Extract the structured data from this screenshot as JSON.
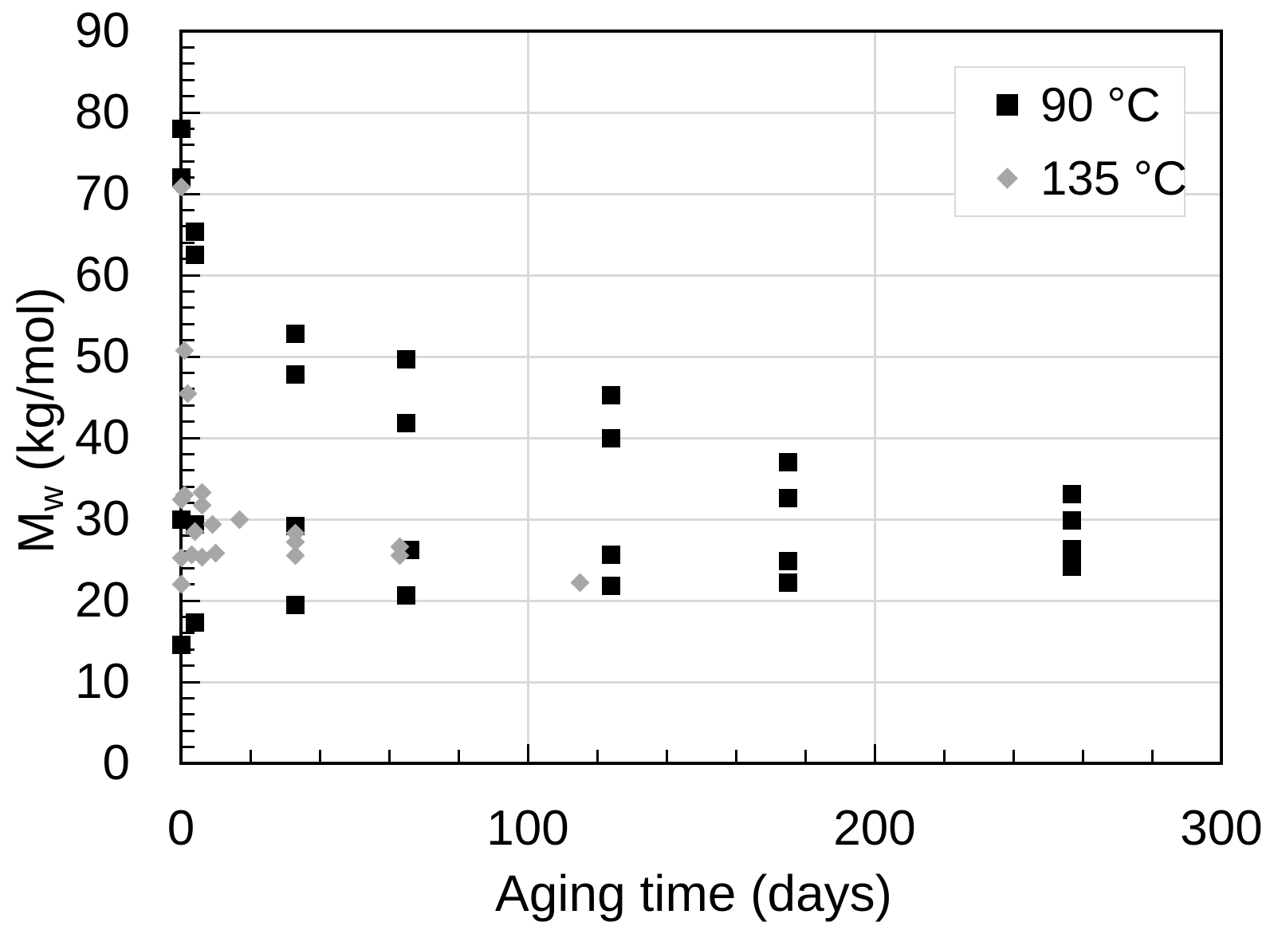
{
  "chart_data": {
    "type": "scatter",
    "title": "",
    "xlabel": "Aging time (days)",
    "ylabel_main": "M",
    "ylabel_sub": "w",
    "ylabel_unit": " (kg/mol)",
    "xlim": [
      0,
      300
    ],
    "ylim": [
      0,
      90
    ],
    "x_tick_labels": [
      "0",
      "100",
      "200",
      "300"
    ],
    "x_major_step": 100,
    "x_minor_step": 20,
    "y_tick_labels": [
      "0",
      "10",
      "20",
      "30",
      "40",
      "50",
      "60",
      "70",
      "80",
      "90"
    ],
    "y_major_step": 10,
    "y_minor_step": 2,
    "grid": true,
    "legend_position": "top-right",
    "colors": {
      "axis": "#000000",
      "gridline": "#d9d9d9",
      "legend_border": "#d9d9d9",
      "series_90": "#000000",
      "series_135": "#a6a6a6"
    },
    "series": [
      {
        "name": "90 °C",
        "marker": "square",
        "color": "#000000",
        "points": [
          [
            0,
            78.0
          ],
          [
            0,
            72.0
          ],
          [
            4,
            65.3
          ],
          [
            4,
            62.5
          ],
          [
            33,
            52.8
          ],
          [
            33,
            47.8
          ],
          [
            65,
            49.7
          ],
          [
            65,
            41.8
          ],
          [
            124,
            45.2
          ],
          [
            124,
            40.0
          ],
          [
            175,
            37.0
          ],
          [
            175,
            32.6
          ],
          [
            257,
            33.1
          ],
          [
            257,
            29.9
          ],
          [
            0,
            30.0
          ],
          [
            4,
            29.4
          ],
          [
            33,
            29.2
          ],
          [
            66,
            26.2
          ],
          [
            124,
            25.6
          ],
          [
            124,
            21.8
          ],
          [
            175,
            24.9
          ],
          [
            175,
            22.2
          ],
          [
            257,
            26.3
          ],
          [
            257,
            24.2
          ],
          [
            33,
            19.5
          ],
          [
            65,
            20.6
          ],
          [
            4,
            17.3
          ],
          [
            0,
            14.6
          ]
        ]
      },
      {
        "name": "135 °C",
        "marker": "diamond",
        "color": "#a6a6a6",
        "points": [
          [
            0,
            70.8
          ],
          [
            1,
            50.7
          ],
          [
            2,
            45.4
          ],
          [
            1,
            33.0
          ],
          [
            6,
            33.3
          ],
          [
            0,
            32.4
          ],
          [
            6,
            31.7
          ],
          [
            9,
            29.4
          ],
          [
            17,
            30.0
          ],
          [
            4,
            28.5
          ],
          [
            0,
            25.2
          ],
          [
            3,
            25.6
          ],
          [
            6,
            25.3
          ],
          [
            10,
            25.8
          ],
          [
            0,
            22.0
          ],
          [
            33,
            28.3
          ],
          [
            33,
            27.2
          ],
          [
            33,
            25.5
          ],
          [
            63,
            26.6
          ],
          [
            63,
            25.5
          ],
          [
            115,
            22.2
          ]
        ]
      }
    ]
  }
}
